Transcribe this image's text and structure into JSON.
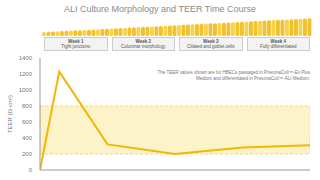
{
  "chart_data": {
    "type": "line",
    "title": "ALI Culture Morphology and TEER Time Course",
    "weeks": [
      {
        "label": "Week 1",
        "text": "Tight junctions"
      },
      {
        "label": "Week 2",
        "text": "Columnar morphology"
      },
      {
        "label": "Week 3",
        "text": "Ciliated and goblet cells"
      },
      {
        "label": "Week 4",
        "text": "Fully differentiated"
      }
    ],
    "y_label": "TEER (Ω·cm²)",
    "annotation": "The TEER values shown are for HBECs passaged in PneumaCult™-Ex Plus Medium and differentiated in PneumaCult™-ALI Medium.",
    "x": [
      0,
      2,
      7,
      14,
      21,
      28
    ],
    "values": [
      0,
      1230,
      320,
      200,
      280,
      310
    ],
    "xlim": [
      0,
      28
    ],
    "ylim": [
      0,
      1400
    ],
    "yticks": [
      0,
      200,
      400,
      600,
      800,
      1000,
      1200,
      1400
    ],
    "band": [
      200,
      800
    ],
    "color": "#f2b705",
    "tick_labels": "y",
    "grid": false
  }
}
